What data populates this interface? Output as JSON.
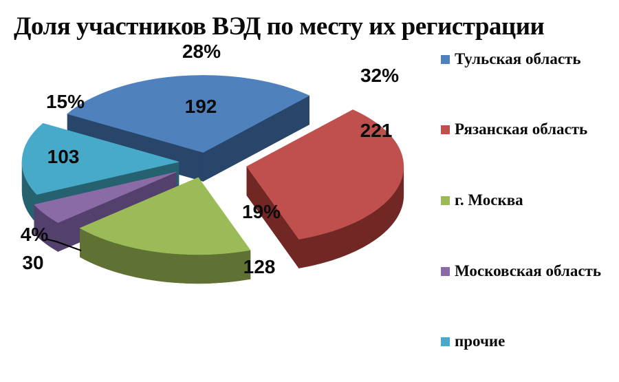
{
  "title": "Доля участников ВЭД по месту их регистрации",
  "background_color": "#FFFFFF",
  "text_color": "#0B0B0B",
  "chart_data": {
    "type": "pie",
    "style": "3d-exploded",
    "title": "Доля участников ВЭД по месту их регистрации",
    "legend_position": "right",
    "total": 674,
    "series": [
      {
        "label": "Тульская область",
        "value": 192,
        "pct_label": "28%",
        "color": "#4F81BD",
        "side_color": "#28456A"
      },
      {
        "label": "Рязанская область",
        "value": 221,
        "pct_label": "32%",
        "color": "#C0504D",
        "side_color": "#712825"
      },
      {
        "label": "г. Москва",
        "value": 128,
        "pct_label": "19%",
        "color": "#9BBB59",
        "side_color": "#5F7233"
      },
      {
        "label": "Московская область",
        "value": 30,
        "pct_label": "4%",
        "color": "#8A6BA6",
        "side_color": "#54406C"
      },
      {
        "label": "прочие",
        "value": 103,
        "pct_label": "15%",
        "color": "#47AAC8",
        "side_color": "#26616F"
      }
    ]
  }
}
